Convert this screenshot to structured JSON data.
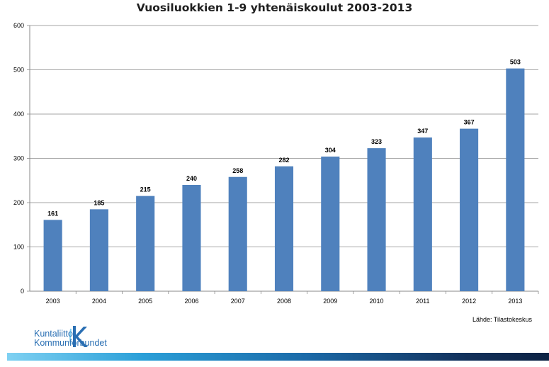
{
  "chart_data": {
    "type": "bar",
    "title": "Vuosiluokkien 1-9 yhtenäiskoulut 2003-2013",
    "categories": [
      "2003",
      "2004",
      "2005",
      "2006",
      "2007",
      "2008",
      "2009",
      "2010",
      "2011",
      "2012",
      "2013"
    ],
    "values": [
      161,
      185,
      215,
      240,
      258,
      282,
      304,
      323,
      347,
      367,
      503
    ],
    "ylim": [
      0,
      600
    ],
    "yticks": [
      0,
      100,
      200,
      300,
      400,
      500,
      600
    ],
    "xlabel": "",
    "ylabel": "",
    "grid": true,
    "legend": "none",
    "bar_color": "#4f81bd"
  },
  "source_text": "Lähde: Tilastokeskus",
  "logo": {
    "line1": "Kuntaliitto",
    "line2": "Kommunförbundet",
    "color": "#2a6fb3"
  }
}
